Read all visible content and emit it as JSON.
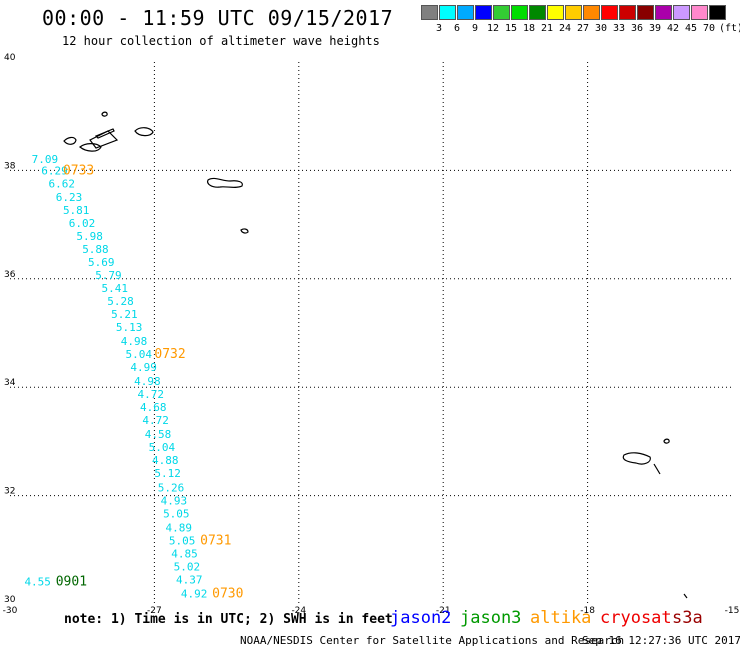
{
  "header": {
    "title": "00:00 - 11:59 UTC 09/15/2017",
    "subtitle": "12 hour collection of altimeter wave heights"
  },
  "color_scale": {
    "swatches": [
      "#808080",
      "#00ffff",
      "#00aaff",
      "#0000ff",
      "#33cc33",
      "#00dd00",
      "#008800",
      "#ffff00",
      "#ffcc00",
      "#ff8800",
      "#ff0000",
      "#cc0000",
      "#880000",
      "#aa00aa",
      "#cc99ff",
      "#ff88cc",
      "#000000"
    ],
    "labels": [
      "3",
      "6",
      "9",
      "12",
      "15",
      "18",
      "21",
      "24",
      "27",
      "30",
      "33",
      "36",
      "39",
      "42",
      "45",
      "70"
    ],
    "unit": "(ft)"
  },
  "map": {
    "lon_range": [
      -30,
      -15
    ],
    "lat_range": [
      30,
      40
    ],
    "lon_ticks": [
      "-30",
      "-27",
      "-24",
      "-21",
      "-18",
      "-15"
    ],
    "lat_ticks": [
      "40",
      "38",
      "36",
      "34",
      "32",
      "30"
    ],
    "grid_style": "dotted"
  },
  "observations": {
    "swh_cyan": [
      {
        "v": "7.09",
        "lon": -29.55,
        "lat": 38.14
      },
      {
        "v": "6.29",
        "lon": -29.35,
        "lat": 37.92
      },
      {
        "v": "6.62",
        "lon": -29.2,
        "lat": 37.68
      },
      {
        "v": "6.23",
        "lon": -29.05,
        "lat": 37.44
      },
      {
        "v": "5.81",
        "lon": -28.9,
        "lat": 37.2
      },
      {
        "v": "6.02",
        "lon": -28.78,
        "lat": 36.96
      },
      {
        "v": "5.98",
        "lon": -28.62,
        "lat": 36.72
      },
      {
        "v": "5.88",
        "lon": -28.5,
        "lat": 36.48
      },
      {
        "v": "5.69",
        "lon": -28.38,
        "lat": 36.24
      },
      {
        "v": "5.79",
        "lon": -28.23,
        "lat": 36.0
      },
      {
        "v": "5.41",
        "lon": -28.1,
        "lat": 35.76
      },
      {
        "v": "5.28",
        "lon": -27.98,
        "lat": 35.52
      },
      {
        "v": "5.21",
        "lon": -27.9,
        "lat": 35.28
      },
      {
        "v": "5.13",
        "lon": -27.8,
        "lat": 35.04
      },
      {
        "v": "4.98",
        "lon": -27.7,
        "lat": 34.78
      },
      {
        "v": "5.04",
        "lon": -27.6,
        "lat": 34.54
      },
      {
        "v": "4.99",
        "lon": -27.5,
        "lat": 34.3
      },
      {
        "v": "4.98",
        "lon": -27.42,
        "lat": 34.04
      },
      {
        "v": "4.72",
        "lon": -27.35,
        "lat": 33.8
      },
      {
        "v": "4.68",
        "lon": -27.3,
        "lat": 33.56
      },
      {
        "v": "4.72",
        "lon": -27.25,
        "lat": 33.32
      },
      {
        "v": "4.58",
        "lon": -27.2,
        "lat": 33.06
      },
      {
        "v": "5.04",
        "lon": -27.12,
        "lat": 32.82
      },
      {
        "v": "4.88",
        "lon": -27.05,
        "lat": 32.58
      },
      {
        "v": "5.12",
        "lon": -27.0,
        "lat": 32.34
      },
      {
        "v": "5.26",
        "lon": -26.93,
        "lat": 32.08
      },
      {
        "v": "4.93",
        "lon": -26.87,
        "lat": 31.84
      },
      {
        "v": "5.05",
        "lon": -26.82,
        "lat": 31.6
      },
      {
        "v": "4.89",
        "lon": -26.77,
        "lat": 31.34
      },
      {
        "v": "5.05",
        "lon": -26.7,
        "lat": 31.1
      },
      {
        "v": "4.85",
        "lon": -26.65,
        "lat": 30.86
      },
      {
        "v": "5.02",
        "lon": -26.6,
        "lat": 30.62
      },
      {
        "v": "4.37",
        "lon": -26.55,
        "lat": 30.38
      },
      {
        "v": "4.92",
        "lon": -26.45,
        "lat": 30.12
      },
      {
        "v": "4.55",
        "lon": -29.7,
        "lat": 30.34
      }
    ],
    "time_labels": [
      {
        "v": "0733",
        "lon": -28.9,
        "lat": 37.92,
        "color": "#ff9900"
      },
      {
        "v": "0732",
        "lon": -27.0,
        "lat": 34.54,
        "color": "#ff9900"
      },
      {
        "v": "0731",
        "lon": -26.05,
        "lat": 31.1,
        "color": "#ff9900"
      },
      {
        "v": "0730",
        "lon": -25.8,
        "lat": 30.12,
        "color": "#ff9900"
      },
      {
        "v": "0901",
        "lon": -29.05,
        "lat": 30.34,
        "color": "#006600"
      }
    ]
  },
  "footer": {
    "note": "note: 1) Time is in UTC; 2) SWH is in feet",
    "legend": [
      {
        "name": "jason2",
        "color": "#0000ff"
      },
      {
        "name": "jason3",
        "color": "#009900"
      },
      {
        "name": "altika",
        "color": "#ff9900"
      },
      {
        "name": "cryosat",
        "color": "#ee0000"
      },
      {
        "name": "s3a",
        "color": "#990000"
      }
    ],
    "credit": "NOAA/NESDIS Center for Satellite Applications and Research",
    "generated": "Sep 16 12:27:36 UTC 2017"
  }
}
